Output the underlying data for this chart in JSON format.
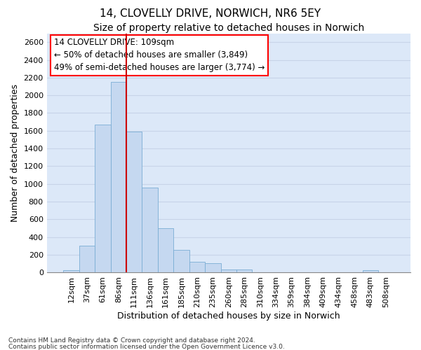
{
  "title": "14, CLOVELLY DRIVE, NORWICH, NR6 5EY",
  "subtitle": "Size of property relative to detached houses in Norwich",
  "xlabel": "Distribution of detached houses by size in Norwich",
  "ylabel": "Number of detached properties",
  "footnote1": "Contains HM Land Registry data © Crown copyright and database right 2024.",
  "footnote2": "Contains public sector information licensed under the Open Government Licence v3.0.",
  "bar_labels": [
    "12sqm",
    "37sqm",
    "61sqm",
    "86sqm",
    "111sqm",
    "136sqm",
    "161sqm",
    "185sqm",
    "210sqm",
    "235sqm",
    "260sqm",
    "285sqm",
    "310sqm",
    "334sqm",
    "359sqm",
    "384sqm",
    "409sqm",
    "434sqm",
    "458sqm",
    "483sqm",
    "508sqm"
  ],
  "bar_values": [
    25,
    300,
    1670,
    2150,
    1590,
    960,
    500,
    250,
    120,
    100,
    30,
    30,
    0,
    0,
    0,
    0,
    0,
    0,
    0,
    25,
    0
  ],
  "bar_color": "#c5d8f0",
  "bar_edge_color": "#7aadd4",
  "vline_x": 4,
  "vline_color": "#cc0000",
  "annotation_title": "14 CLOVELLY DRIVE: 109sqm",
  "annotation_line1": "← 50% of detached houses are smaller (3,849)",
  "annotation_line2": "49% of semi-detached houses are larger (3,774) →",
  "ylim": [
    0,
    2700
  ],
  "yticks": [
    0,
    200,
    400,
    600,
    800,
    1000,
    1200,
    1400,
    1600,
    1800,
    2000,
    2200,
    2400,
    2600
  ],
  "grid_color": "#c8d4e8",
  "background_color": "#dce8f8",
  "title_fontsize": 11,
  "subtitle_fontsize": 10,
  "ylabel_fontsize": 9,
  "xlabel_fontsize": 9,
  "tick_fontsize": 8,
  "annot_fontsize": 8.5,
  "footnote_fontsize": 6.5
}
